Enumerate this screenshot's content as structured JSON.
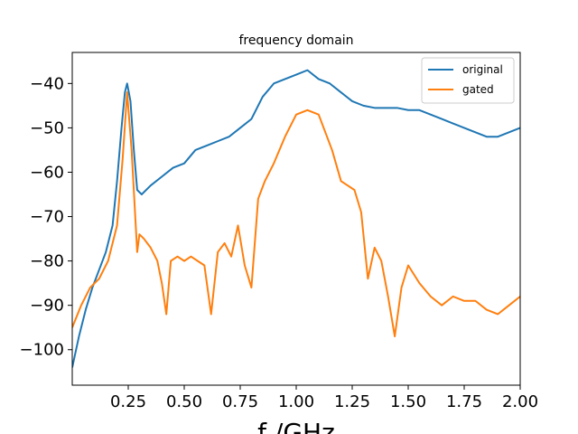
{
  "chart_data": {
    "type": "line",
    "title": "frequency domain",
    "xlabel": "f /GHz",
    "ylabel": "",
    "xlim": [
      0.0,
      2.0
    ],
    "ylim": [
      -108,
      -33
    ],
    "xticks": [
      0.25,
      0.5,
      0.75,
      1.0,
      1.25,
      1.5,
      1.75,
      2.0
    ],
    "xtick_labels": [
      "0.25",
      "0.50",
      "0.75",
      "1.00",
      "1.25",
      "1.50",
      "1.75",
      "2.00"
    ],
    "yticks": [
      -100,
      -90,
      -80,
      -70,
      -60,
      -50,
      -40
    ],
    "ytick_labels": [
      "−100",
      "−90",
      "−80",
      "−70",
      "−60",
      "−50",
      "−40"
    ],
    "grid": false,
    "legend": "top-right",
    "series": [
      {
        "name": "original",
        "color": "#1f77b4",
        "x": [
          0.0,
          0.03,
          0.06,
          0.09,
          0.12,
          0.15,
          0.18,
          0.2,
          0.22,
          0.235,
          0.245,
          0.26,
          0.275,
          0.29,
          0.31,
          0.35,
          0.4,
          0.45,
          0.5,
          0.55,
          0.6,
          0.65,
          0.7,
          0.75,
          0.8,
          0.85,
          0.9,
          0.95,
          1.0,
          1.05,
          1.1,
          1.15,
          1.2,
          1.25,
          1.3,
          1.35,
          1.4,
          1.45,
          1.5,
          1.55,
          1.6,
          1.65,
          1.7,
          1.75,
          1.8,
          1.85,
          1.9,
          1.95,
          2.0
        ],
        "y": [
          -104,
          -97,
          -91,
          -86,
          -82,
          -78,
          -72,
          -62,
          -50,
          -42,
          -40,
          -44,
          -55,
          -64,
          -65,
          -63,
          -61,
          -59,
          -58,
          -55,
          -54,
          -53,
          -52,
          -50,
          -48,
          -43,
          -40,
          -39,
          -38,
          -37,
          -39,
          -40,
          -42,
          -44,
          -45,
          -45.5,
          -45.5,
          -45.5,
          -46,
          -46,
          -47,
          -48,
          -49,
          -50,
          -51,
          -52,
          -52,
          -51,
          -50
        ]
      },
      {
        "name": "gated",
        "color": "#ff7f0e",
        "x": [
          0.0,
          0.04,
          0.08,
          0.12,
          0.16,
          0.2,
          0.225,
          0.245,
          0.265,
          0.29,
          0.3,
          0.32,
          0.35,
          0.38,
          0.4,
          0.42,
          0.44,
          0.47,
          0.5,
          0.53,
          0.56,
          0.59,
          0.62,
          0.65,
          0.68,
          0.71,
          0.74,
          0.77,
          0.8,
          0.83,
          0.86,
          0.9,
          0.95,
          1.0,
          1.05,
          1.1,
          1.13,
          1.16,
          1.2,
          1.23,
          1.26,
          1.29,
          1.32,
          1.35,
          1.38,
          1.41,
          1.44,
          1.47,
          1.5,
          1.55,
          1.6,
          1.65,
          1.7,
          1.75,
          1.8,
          1.85,
          1.9,
          1.95,
          2.0
        ],
        "y": [
          -95,
          -90,
          -86,
          -84,
          -80,
          -72,
          -57,
          -42,
          -55,
          -78,
          -74,
          -75,
          -77,
          -80,
          -85,
          -92,
          -80,
          -79,
          -80,
          -79,
          -80,
          -81,
          -92,
          -78,
          -76,
          -79,
          -72,
          -81,
          -86,
          -66,
          -62,
          -58,
          -52,
          -47,
          -46,
          -47,
          -51,
          -55,
          -62,
          -63,
          -64,
          -69,
          -84,
          -77,
          -80,
          -88,
          -97,
          -86,
          -81,
          -85,
          -88,
          -90,
          -88,
          -89,
          -89,
          -91,
          -92,
          -90,
          -88
        ]
      }
    ]
  }
}
